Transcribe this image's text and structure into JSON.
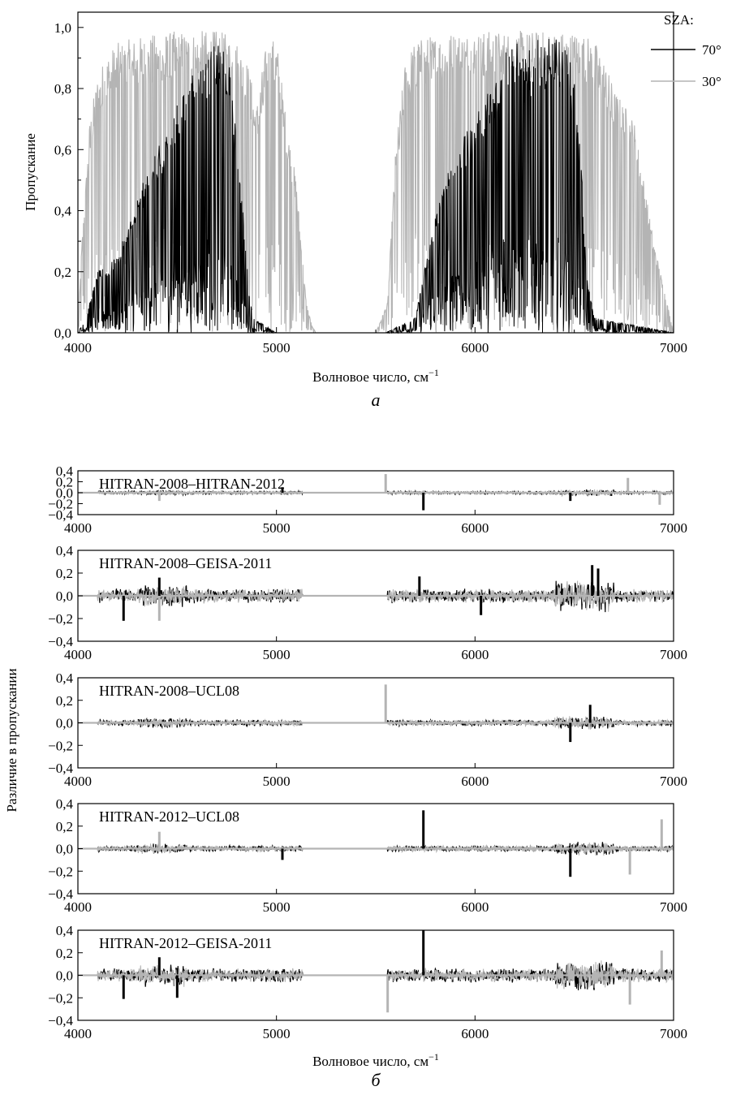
{
  "colors": {
    "sza70": "#000000",
    "sza30": "#b4b4b4"
  },
  "chart_data": [
    {
      "type": "line",
      "panel_label": "а",
      "xlabel": "Волновое число, см",
      "xlabel_sup": "−1",
      "ylabel": "Пропускание",
      "xlim": [
        4000,
        7000
      ],
      "ylim": [
        0,
        1.05
      ],
      "x_ticks": [
        "4000",
        "5000",
        "6000",
        "7000"
      ],
      "y_ticks": [
        "0,0",
        "0,2",
        "0,4",
        "0,6",
        "0,8",
        "1,0"
      ],
      "legend": {
        "title": "SZA:",
        "position": "top-right"
      },
      "series": [
        {
          "name": "70°",
          "color": "#000000",
          "envelope": {
            "x": [
              4000,
              4040,
              4100,
              4200,
              4300,
              4400,
              4500,
              4600,
              4680,
              4700,
              4760,
              4820,
              4860,
              4880,
              4950,
              5000,
              5100,
              5550,
              5700,
              5800,
              5900,
              6000,
              6100,
              6150,
              6180,
              6200,
              6250,
              6300,
              6350,
              6400,
              6450,
              6500,
              6540,
              6560,
              6600,
              7000
            ],
            "y": [
              0,
              0.05,
              0.2,
              0.25,
              0.45,
              0.6,
              0.75,
              0.88,
              0.95,
              0.95,
              0.9,
              0.5,
              0.15,
              0.05,
              0.02,
              0.0,
              0,
              0,
              0.05,
              0.4,
              0.6,
              0.7,
              0.85,
              0.95,
              0.98,
              0.97,
              0.9,
              0.96,
              0.96,
              0.97,
              0.95,
              0.85,
              0.5,
              0.2,
              0.05,
              0
            ]
          }
        },
        {
          "name": "30°",
          "color": "#b4b4b4",
          "envelope": {
            "x": [
              4000,
              4020,
              4060,
              4100,
              4150,
              4200,
              4300,
              4400,
              4500,
              4600,
              4700,
              4750,
              4800,
              4850,
              4900,
              4950,
              5000,
              5050,
              5100,
              5150,
              5180,
              5200,
              5500,
              5560,
              5600,
              5650,
              5700,
              5800,
              5900,
              6000,
              6100,
              6200,
              6300,
              6400,
              6500,
              6550,
              6600,
              6650,
              6700,
              6800,
              6850,
              6900,
              6950,
              7000
            ],
            "y": [
              0,
              0.3,
              0.7,
              0.85,
              0.92,
              0.95,
              0.97,
              0.98,
              0.99,
              0.99,
              0.99,
              0.98,
              0.96,
              0.9,
              0.75,
              0.95,
              0.97,
              0.7,
              0.5,
              0.1,
              0.02,
              0,
              0,
              0.1,
              0.6,
              0.9,
              0.96,
              0.98,
              0.99,
              0.99,
              0.99,
              0.99,
              0.99,
              0.99,
              0.99,
              0.98,
              0.96,
              0.9,
              0.8,
              0.7,
              0.5,
              0.3,
              0.15,
              0
            ]
          }
        }
      ]
    },
    {
      "type": "line",
      "panel_label": "б",
      "title": "HITRAN-2008–HITRAN-2012",
      "xlim": [
        4000,
        7000
      ],
      "ylim": [
        -0.4,
        0.4
      ],
      "x_ticks": [
        "4000",
        "5000",
        "6000",
        "7000"
      ],
      "y_ticks": [
        "0,4",
        "0,2",
        "0,0",
        "−0,2",
        "−0,4"
      ],
      "spikes": [
        {
          "x": 5550,
          "y": 0.34,
          "series": "30°"
        },
        {
          "x": 5740,
          "y": -0.32,
          "series": "70°"
        },
        {
          "x": 6770,
          "y": 0.27,
          "series": "30°"
        },
        {
          "x": 4410,
          "y": -0.15,
          "series": "30°"
        },
        {
          "x": 6480,
          "y": -0.15,
          "series": "70°"
        },
        {
          "x": 6930,
          "y": -0.22,
          "series": "30°"
        },
        {
          "x": 5030,
          "y": 0.1,
          "series": "70°"
        }
      ]
    },
    {
      "type": "line",
      "title": "HITRAN-2008–GEISA-2011",
      "xlim": [
        4000,
        7000
      ],
      "ylim": [
        -0.4,
        0.4
      ],
      "x_ticks": [
        "4000",
        "5000",
        "6000",
        "7000"
      ],
      "y_ticks": [
        "0,4",
        "0,2",
        "0,0",
        "−0,2",
        "−0,4"
      ],
      "spikes": [
        {
          "x": 4230,
          "y": -0.22,
          "series": "70°"
        },
        {
          "x": 4410,
          "y": 0.16,
          "series": "70°"
        },
        {
          "x": 4410,
          "y": -0.22,
          "series": "30°"
        },
        {
          "x": 6590,
          "y": 0.27,
          "series": "70°"
        },
        {
          "x": 6620,
          "y": 0.24,
          "series": "70°"
        },
        {
          "x": 6030,
          "y": -0.17,
          "series": "70°"
        },
        {
          "x": 5720,
          "y": 0.17,
          "series": "70°"
        }
      ]
    },
    {
      "type": "line",
      "title": "HITRAN-2008–UCL08",
      "ylabel": "Различие в пропускании",
      "xlim": [
        4000,
        7000
      ],
      "ylim": [
        -0.4,
        0.4
      ],
      "x_ticks": [
        "4000",
        "5000",
        "6000",
        "7000"
      ],
      "y_ticks": [
        "0,4",
        "0,2",
        "0,0",
        "−0,2",
        "−0,4"
      ],
      "spikes": [
        {
          "x": 5550,
          "y": 0.34,
          "series": "30°"
        },
        {
          "x": 6480,
          "y": -0.17,
          "series": "70°"
        },
        {
          "x": 6580,
          "y": 0.16,
          "series": "70°"
        }
      ]
    },
    {
      "type": "line",
      "title": "HITRAN-2012–UCL08",
      "xlim": [
        4000,
        7000
      ],
      "ylim": [
        -0.4,
        0.4
      ],
      "x_ticks": [
        "4000",
        "5000",
        "6000",
        "7000"
      ],
      "y_ticks": [
        "0,4",
        "0,2",
        "0,0",
        "−0,2",
        "−0,4"
      ],
      "spikes": [
        {
          "x": 5740,
          "y": 0.34,
          "series": "70°"
        },
        {
          "x": 4410,
          "y": 0.15,
          "series": "30°"
        },
        {
          "x": 6480,
          "y": -0.25,
          "series": "70°"
        },
        {
          "x": 6780,
          "y": -0.23,
          "series": "30°"
        },
        {
          "x": 6940,
          "y": 0.26,
          "series": "30°"
        },
        {
          "x": 5030,
          "y": -0.1,
          "series": "70°"
        }
      ]
    },
    {
      "type": "line",
      "panel_label": "б",
      "title": "HITRAN-2012–GEISA-2011",
      "xlabel": "Волновое число, см",
      "xlabel_sup": "−1",
      "xlim": [
        4000,
        7000
      ],
      "ylim": [
        -0.4,
        0.4
      ],
      "x_ticks": [
        "4000",
        "5000",
        "6000",
        "7000"
      ],
      "y_ticks": [
        "0,4",
        "0,2",
        "0,0",
        "−0,2",
        "−0,4"
      ],
      "spikes": [
        {
          "x": 5740,
          "y": 0.43,
          "series": "70°"
        },
        {
          "x": 5560,
          "y": -0.33,
          "series": "30°"
        },
        {
          "x": 6780,
          "y": -0.26,
          "series": "30°"
        },
        {
          "x": 6940,
          "y": 0.22,
          "series": "30°"
        },
        {
          "x": 4230,
          "y": -0.21,
          "series": "70°"
        },
        {
          "x": 4500,
          "y": -0.2,
          "series": "70°"
        },
        {
          "x": 4410,
          "y": 0.16,
          "series": "70°"
        }
      ]
    }
  ]
}
